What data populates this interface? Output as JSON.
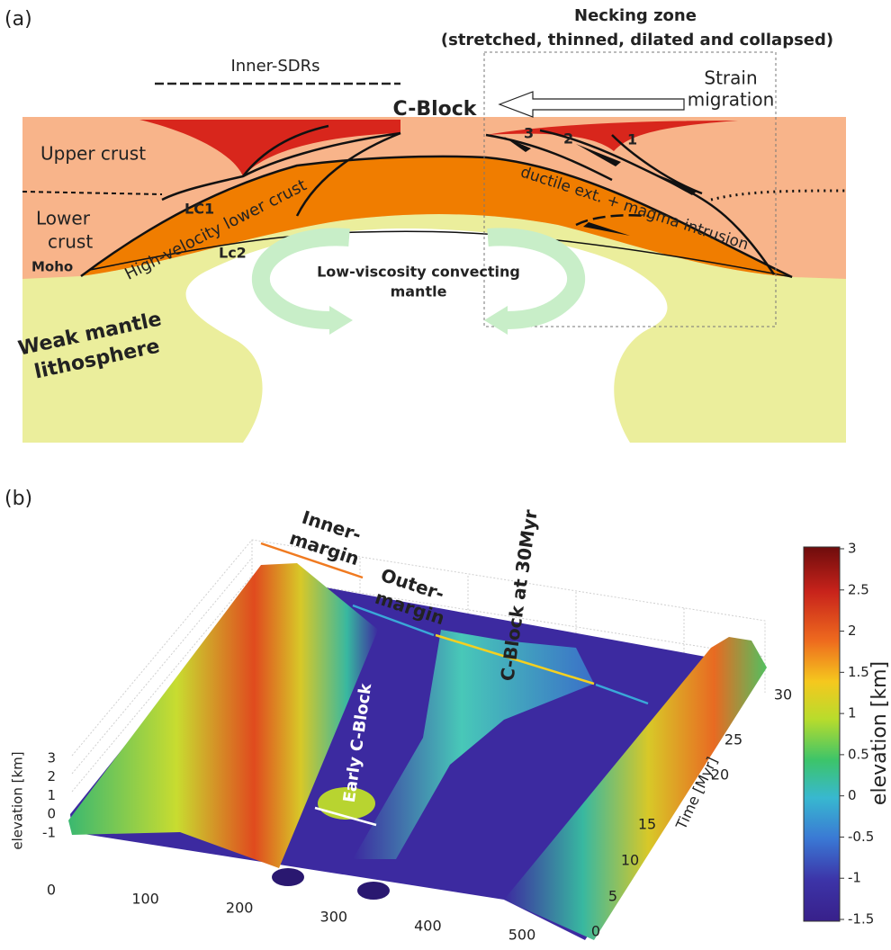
{
  "panel_a": {
    "label": "(a)",
    "necking_zone": {
      "title": "Necking zone",
      "subtitle": "(stretched, thinned, dilated and collapsed)"
    },
    "inner_sdrs": "Inner-SDRs",
    "c_block": "C-Block",
    "strain_migration": [
      "Strain",
      "migration"
    ],
    "upper_crust": "Upper crust",
    "lower_crust": [
      "Lower",
      "crust"
    ],
    "moho": "Moho",
    "lc1": "LC1",
    "high_velocity": "High-velocity lower crust",
    "lc2": "Lc2",
    "convecting_mantle": [
      "Low-viscosity convecting",
      "mantle"
    ],
    "ductile": "ductile ext. + magma intrusion",
    "fault_numbers": [
      "3",
      "2",
      "1"
    ],
    "weak_mantle": [
      "Weak mantle",
      "lithosphere"
    ]
  },
  "panel_b": {
    "label": "(b)",
    "inner_margin": [
      "Inner-",
      "margin"
    ],
    "outer_margin": [
      "Outer-",
      "margin"
    ],
    "c_block_30": "C-Block at 30Myr",
    "early_c_block": "Early C-Block",
    "z_axis": {
      "label": "elevation [km]",
      "ticks": [
        3,
        2,
        1,
        0,
        -1
      ]
    },
    "x_axis": {
      "ticks": [
        0,
        100,
        200,
        300,
        400,
        500
      ]
    },
    "time_axis": {
      "label": "Time [Myr]",
      "ticks": [
        0,
        5,
        10,
        15,
        20,
        25,
        30
      ]
    },
    "colorbar": {
      "label": "elevation [km]",
      "ticks": [
        3,
        2.5,
        2,
        1.5,
        1,
        0.5,
        0,
        -0.5,
        -1,
        -1.5
      ]
    }
  }
}
